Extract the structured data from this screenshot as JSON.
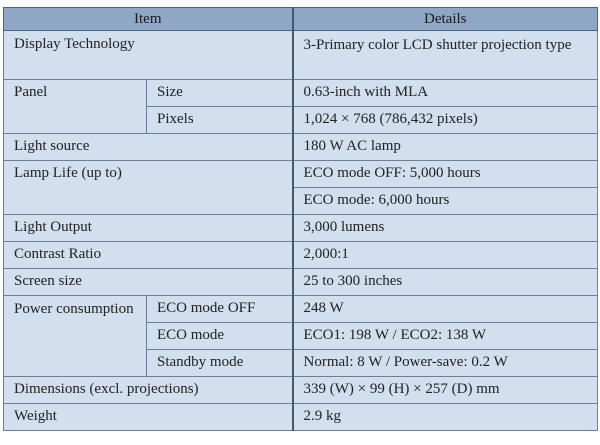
{
  "header": {
    "item": "Item",
    "details": "Details"
  },
  "rows": {
    "display": {
      "label": "Display Technology",
      "value": "3-Primary color LCD shutter projection type"
    },
    "panel": {
      "label": "Panel",
      "size_label": "Size",
      "size_value": "0.63-inch with MLA",
      "pixels_label": "Pixels",
      "pixels_value": "1,024 × 768 (786,432 pixels)"
    },
    "light_source": {
      "label": "Light source",
      "value": "180 W AC lamp"
    },
    "lamp_life": {
      "label": "Lamp Life (up to)",
      "value_off": "ECO mode OFF: 5,000 hours",
      "value_on": "ECO mode: 6,000 hours"
    },
    "light_output": {
      "label": "Light Output",
      "value": "3,000 lumens"
    },
    "contrast": {
      "label": "Contrast Ratio",
      "value": "2,000:1"
    },
    "screen_size": {
      "label": "Screen size",
      "value": "25 to 300 inches"
    },
    "power": {
      "label": "Power consumption",
      "eco_off_label": "ECO mode OFF",
      "eco_off_value": "248 W",
      "eco_label": "ECO mode",
      "eco_value": "ECO1: 198 W / ECO2: 138 W",
      "standby_label": "Standby mode",
      "standby_value": "Normal: 8 W / Power-save: 0.2 W"
    },
    "dimensions": {
      "label": "Dimensions (excl. projections)",
      "value": "339 (W) × 99 (H) × 257 (D) mm"
    },
    "weight": {
      "label": "Weight",
      "value": "2.9 kg"
    }
  }
}
